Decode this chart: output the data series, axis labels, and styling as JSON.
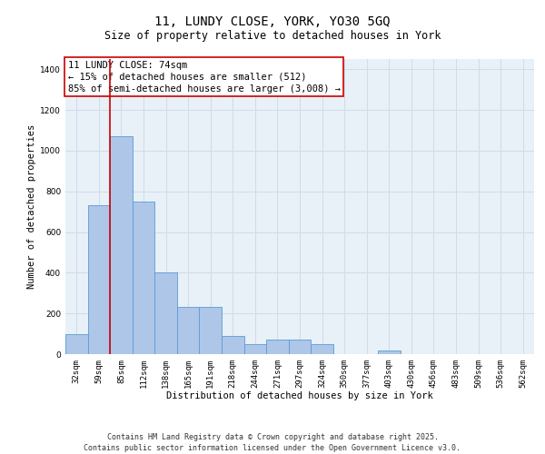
{
  "title_line1": "11, LUNDY CLOSE, YORK, YO30 5GQ",
  "title_line2": "Size of property relative to detached houses in York",
  "xlabel": "Distribution of detached houses by size in York",
  "ylabel": "Number of detached properties",
  "categories": [
    "32sqm",
    "59sqm",
    "85sqm",
    "112sqm",
    "138sqm",
    "165sqm",
    "191sqm",
    "218sqm",
    "244sqm",
    "271sqm",
    "297sqm",
    "324sqm",
    "350sqm",
    "377sqm",
    "403sqm",
    "430sqm",
    "456sqm",
    "483sqm",
    "509sqm",
    "536sqm",
    "562sqm"
  ],
  "values": [
    100,
    730,
    1070,
    750,
    400,
    230,
    230,
    90,
    50,
    70,
    70,
    50,
    0,
    0,
    20,
    0,
    0,
    0,
    0,
    0,
    0
  ],
  "bar_color": "#aec6e8",
  "bar_edge_color": "#5b9bd5",
  "vline_color": "#cc0000",
  "vline_x": 1.5,
  "annotation_box_text": "11 LUNDY CLOSE: 74sqm\n← 15% of detached houses are smaller (512)\n85% of semi-detached houses are larger (3,008) →",
  "annotation_box_color": "#cc0000",
  "ylim": [
    0,
    1450
  ],
  "yticks": [
    0,
    200,
    400,
    600,
    800,
    1000,
    1200,
    1400
  ],
  "grid_color": "#d0dce8",
  "background_color": "#e8f0f8",
  "footer_line1": "Contains HM Land Registry data © Crown copyright and database right 2025.",
  "footer_line2": "Contains public sector information licensed under the Open Government Licence v3.0.",
  "title_fontsize": 10,
  "subtitle_fontsize": 8.5,
  "axis_label_fontsize": 7.5,
  "tick_fontsize": 6.5,
  "annotation_fontsize": 7.5,
  "footer_fontsize": 6
}
